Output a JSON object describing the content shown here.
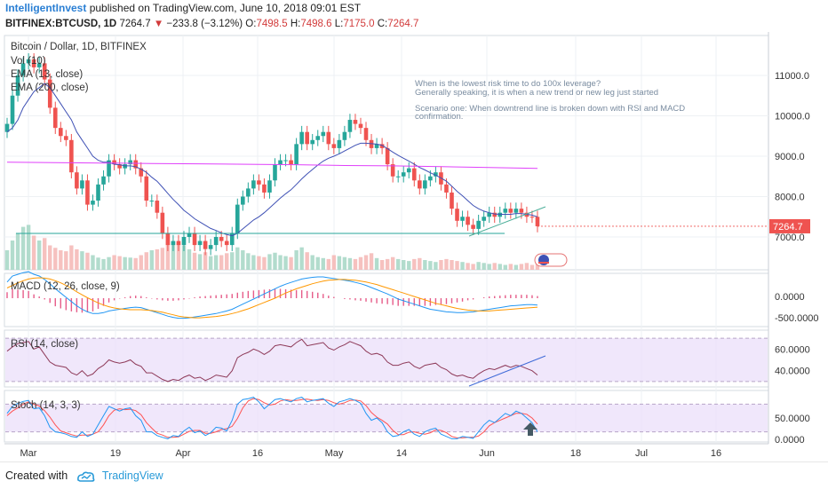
{
  "header": {
    "brand": "IntelligentInvest",
    "published": "published on TradingView.com, June 10, 2018 09:01 EST",
    "symbol": "BITFINEX:BTCUSD, 1D",
    "last": "7264.7",
    "change": "−233.8 (−3.12%)",
    "o_label": "O:",
    "o": "7498.5",
    "h_label": "H:",
    "h": "7498.6",
    "l_label": "L:",
    "l": "7175.0",
    "c_label": "C:",
    "c": "7264.7"
  },
  "footer": {
    "created_with": "Created with",
    "tradingview": "TradingView"
  },
  "colors": {
    "up": "#26a69a",
    "down": "#ef5350",
    "ema13": "#3f51b5",
    "ema200": "#e040fb",
    "rsi": "#8e3a59",
    "band": "#e9ddf9"
  },
  "chart_data": [
    {
      "type": "candlestick",
      "title": "Bitcoin / Dollar, 1D, BITFINEX",
      "legend": [
        "Vol (10)",
        "EMA (13, close)",
        "EMA (200, close)"
      ],
      "ylim": [
        6000,
        12000
      ],
      "yticks": [
        "7000.0",
        "8000.0",
        "9000.0",
        "10000.0",
        "11000.0"
      ],
      "last_price_label": "7264.7",
      "annotations": [
        "When is the lowest risk time to do 100x leverage?",
        "Generally speaking, it is when a new trend or new leg just started",
        "Scenario one: When  downtrend line is broken down with RSI and MACD",
        "confirmation."
      ],
      "xtick_labels": [
        "Mar",
        "19",
        "Apr",
        "16",
        "May",
        "14",
        "Jun",
        "18",
        "Jul",
        "16"
      ],
      "close": [
        9800,
        10500,
        11000,
        11300,
        11400,
        11200,
        11300,
        10900,
        10200,
        9700,
        9500,
        9400,
        8600,
        8200,
        8400,
        7800,
        7900,
        8300,
        8500,
        8900,
        8800,
        8700,
        8800,
        8900,
        8700,
        8500,
        7900,
        7900,
        7600,
        7100,
        6800,
        6900,
        6800,
        7000,
        7100,
        6800,
        6900,
        6700,
        6800,
        7000,
        6900,
        6800,
        7100,
        7800,
        8000,
        8200,
        8400,
        8300,
        8100,
        8400,
        8800,
        8900,
        8900,
        8800,
        9300,
        9600,
        9300,
        9400,
        9500,
        9600,
        9300,
        9200,
        9400,
        9600,
        9900,
        9800,
        9700,
        9400,
        9200,
        9300,
        9200,
        8800,
        8500,
        8500,
        8600,
        8700,
        8400,
        8200,
        8400,
        8500,
        8600,
        8300,
        8100,
        7700,
        7400,
        7500,
        7300,
        7200,
        7400,
        7500,
        7600,
        7500,
        7600,
        7700,
        7600,
        7700,
        7600,
        7500,
        7498.5,
        7264.7
      ],
      "ema13": [
        9600,
        9700,
        9900,
        10200,
        10400,
        10600,
        10700,
        10800,
        10700,
        10500,
        10300,
        10100,
        9900,
        9600,
        9400,
        9200,
        9000,
        8900,
        8850,
        8850,
        8800,
        8790,
        8760,
        8760,
        8740,
        8680,
        8600,
        8480,
        8380,
        8230,
        8080,
        7930,
        7800,
        7660,
        7560,
        7450,
        7370,
        7290,
        7210,
        7160,
        7100,
        7060,
        7030,
        7090,
        7200,
        7310,
        7420,
        7500,
        7600,
        7720,
        7840,
        7960,
        8070,
        8170,
        8300,
        8440,
        8560,
        8670,
        8780,
        8880,
        8950,
        9000,
        9060,
        9130,
        9200,
        9270,
        9320,
        9320,
        9310,
        9300,
        9270,
        9190,
        9100,
        9020,
        8950,
        8880,
        8800,
        8720,
        8660,
        8590,
        8530,
        8460,
        8380,
        8260,
        8130,
        8020,
        7900,
        7780,
        7700,
        7640,
        7600,
        7570,
        7560,
        7560,
        7560,
        7580,
        7580,
        7560,
        7540,
        7500
      ],
      "ema200": [
        8850,
        8840,
        8830,
        8820,
        8810,
        8800,
        8790,
        8770,
        8760,
        8740,
        8720,
        8700
      ],
      "volume": [
        40,
        60,
        75,
        88,
        92,
        70,
        60,
        65,
        50,
        45,
        40,
        38,
        50,
        42,
        38,
        35,
        30,
        25,
        22,
        26,
        30,
        28,
        26,
        25,
        24,
        30,
        36,
        40,
        42,
        45,
        60,
        58,
        55,
        50,
        42,
        35,
        32,
        36,
        28,
        30,
        30,
        34,
        36,
        46,
        40,
        34,
        30,
        28,
        26,
        32,
        35,
        30,
        28,
        26,
        40,
        46,
        36,
        30,
        26,
        24,
        22,
        30,
        28,
        26,
        24,
        22,
        26,
        30,
        34,
        24,
        20,
        22,
        26,
        22,
        20,
        18,
        22,
        24,
        20,
        18,
        16,
        20,
        22,
        20,
        18,
        16,
        14,
        12,
        16,
        14,
        12,
        14,
        12,
        10,
        12,
        10,
        12,
        14,
        10,
        20
      ]
    },
    {
      "type": "line",
      "title": "MACD (12, 26, close, 9)",
      "yticks": [
        "0.0000",
        "-500.0000"
      ],
      "series": [
        {
          "name": "MACD",
          "values": [
            380,
            520,
            560,
            600,
            620,
            560,
            520,
            440,
            340,
            220,
            120,
            20,
            -80,
            -180,
            -260,
            -320,
            -360,
            -360,
            -340,
            -300,
            -280,
            -260,
            -240,
            -220,
            -210,
            -220,
            -260,
            -300,
            -340,
            -380,
            -420,
            -450,
            -470,
            -470,
            -460,
            -440,
            -420,
            -400,
            -380,
            -360,
            -330,
            -300,
            -260,
            -200,
            -140,
            -80,
            -20,
            40,
            100,
            160,
            220,
            280,
            330,
            370,
            410,
            450,
            470,
            490,
            500,
            500,
            480,
            460,
            440,
            420,
            400,
            370,
            340,
            300,
            250,
            200,
            150,
            100,
            40,
            -20,
            -60,
            -100,
            -140,
            -180,
            -220,
            -260,
            -280,
            -300,
            -320,
            -330,
            -340,
            -340,
            -330,
            -320,
            -300,
            -280,
            -260,
            -240,
            -220,
            -200,
            -180,
            -170,
            -160,
            -150,
            -150,
            -160
          ]
        },
        {
          "name": "Signal",
          "values": [
            240,
            300,
            360,
            410,
            450,
            470,
            480,
            470,
            450,
            410,
            360,
            300,
            230,
            150,
            80,
            10,
            -50,
            -110,
            -160,
            -200,
            -230,
            -250,
            -260,
            -270,
            -270,
            -270,
            -280,
            -290,
            -310,
            -330,
            -360,
            -390,
            -420,
            -440,
            -450,
            -460,
            -460,
            -450,
            -440,
            -430,
            -410,
            -390,
            -360,
            -330,
            -290,
            -250,
            -200,
            -150,
            -100,
            -50,
            0,
            60,
            120,
            170,
            220,
            260,
            300,
            340,
            370,
            400,
            420,
            430,
            440,
            440,
            430,
            420,
            400,
            380,
            350,
            320,
            280,
            240,
            200,
            160,
            120,
            80,
            40,
            0,
            -40,
            -80,
            -120,
            -150,
            -180,
            -210,
            -240,
            -260,
            -280,
            -290,
            -300,
            -300,
            -300,
            -290,
            -280,
            -270,
            -260,
            -250,
            -240,
            -230,
            -220,
            -210
          ]
        },
        {
          "name": "Histogram",
          "values": [
            140,
            220,
            200,
            190,
            170,
            90,
            40,
            -30,
            -110,
            -190,
            -240,
            -280,
            -310,
            -330,
            -340,
            -330,
            -310,
            -250,
            -180,
            -100,
            -50,
            -10,
            20,
            50,
            60,
            50,
            20,
            -10,
            -30,
            -50,
            -60,
            -60,
            -50,
            -30,
            -10,
            20,
            40,
            50,
            60,
            70,
            80,
            90,
            100,
            130,
            150,
            170,
            180,
            190,
            200,
            210,
            220,
            220,
            210,
            200,
            190,
            190,
            170,
            150,
            130,
            100,
            60,
            30,
            0,
            -20,
            -30,
            -50,
            -60,
            -80,
            -100,
            -120,
            -130,
            -140,
            -160,
            -180,
            -180,
            -180,
            -180,
            -180,
            -180,
            -180,
            -160,
            -150,
            -140,
            -120,
            -100,
            -80,
            -50,
            -30,
            0,
            20,
            40,
            50,
            60,
            70,
            80,
            80,
            80,
            80,
            70,
            50
          ]
        }
      ]
    },
    {
      "type": "line",
      "title": "RSI (14, close)",
      "yticks": [
        "60.0000",
        "40.0000"
      ],
      "ylim": [
        25,
        75
      ],
      "series": [
        {
          "name": "RSI",
          "values": [
            58,
            62,
            65,
            66,
            67,
            60,
            62,
            55,
            48,
            45,
            44,
            43,
            38,
            36,
            40,
            35,
            37,
            42,
            45,
            50,
            48,
            47,
            48,
            50,
            46,
            44,
            38,
            38,
            35,
            32,
            30,
            32,
            31,
            34,
            36,
            33,
            34,
            31,
            33,
            36,
            35,
            34,
            40,
            52,
            55,
            57,
            60,
            58,
            55,
            58,
            63,
            64,
            63,
            62,
            66,
            69,
            63,
            64,
            65,
            66,
            61,
            59,
            62,
            64,
            67,
            65,
            63,
            58,
            55,
            56,
            54,
            48,
            45,
            45,
            47,
            48,
            44,
            42,
            45,
            46,
            47,
            43,
            41,
            37,
            35,
            36,
            34,
            33,
            37,
            40,
            42,
            41,
            43,
            45,
            43,
            45,
            44,
            42,
            40,
            36
          ]
        }
      ]
    },
    {
      "type": "line",
      "title": "Stoch (14, 3, 3)",
      "yticks": [
        "50.0000",
        "0.0000"
      ],
      "ylim": [
        0,
        100
      ],
      "series": [
        {
          "name": "%K",
          "values": [
            60,
            75,
            82,
            86,
            88,
            70,
            72,
            55,
            30,
            20,
            18,
            15,
            10,
            8,
            20,
            10,
            15,
            35,
            55,
            75,
            70,
            65,
            70,
            72,
            55,
            45,
            20,
            20,
            12,
            8,
            5,
            12,
            10,
            22,
            30,
            18,
            22,
            12,
            18,
            30,
            28,
            22,
            45,
            80,
            90,
            92,
            95,
            85,
            70,
            80,
            90,
            92,
            88,
            85,
            92,
            95,
            85,
            88,
            90,
            92,
            82,
            75,
            85,
            88,
            92,
            88,
            82,
            60,
            45,
            50,
            40,
            20,
            10,
            12,
            20,
            25,
            15,
            10,
            20,
            25,
            28,
            15,
            10,
            5,
            5,
            10,
            8,
            6,
            20,
            35,
            45,
            40,
            50,
            60,
            55,
            65,
            60,
            50,
            40,
            20
          ]
        },
        {
          "name": "%D",
          "values": [
            55,
            65,
            72,
            80,
            85,
            80,
            76,
            66,
            52,
            35,
            22,
            18,
            14,
            11,
            13,
            13,
            15,
            20,
            35,
            55,
            67,
            70,
            68,
            69,
            66,
            57,
            40,
            28,
            17,
            13,
            8,
            8,
            9,
            15,
            21,
            23,
            23,
            17,
            17,
            20,
            25,
            27,
            32,
            49,
            72,
            87,
            92,
            90,
            83,
            78,
            80,
            87,
            90,
            88,
            88,
            90,
            91,
            89,
            88,
            90,
            88,
            83,
            80,
            83,
            88,
            89,
            87,
            77,
            62,
            52,
            45,
            37,
            23,
            14,
            14,
            19,
            20,
            17,
            15,
            18,
            24,
            23,
            18,
            10,
            7,
            7,
            8,
            8,
            11,
            20,
            33,
            40,
            45,
            50,
            55,
            60,
            60,
            58,
            50,
            37
          ]
        }
      ]
    }
  ]
}
